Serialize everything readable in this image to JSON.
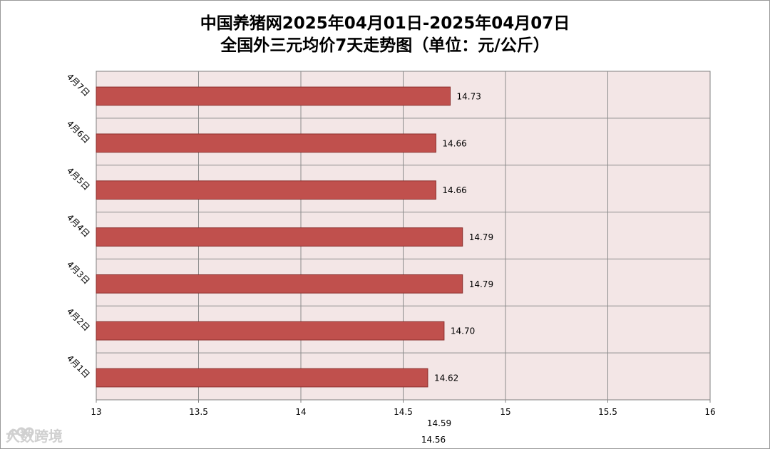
{
  "title_line1": "中国养猪网2025年04月01日-2025年04月07日",
  "title_line2": "全国外三元均价7天走势图（单位：元/公斤）",
  "watermark_text": "大数跨境",
  "chart_data": {
    "type": "bar",
    "orientation": "horizontal",
    "title": "中国养猪网2025年04月01日-2025年04月07日 全国外三元均价7天走势图（单位：元/公斤）",
    "categories": [
      "4月1日",
      "4月2日",
      "4月3日",
      "4月4日",
      "4月5日",
      "4月6日",
      "4月7日"
    ],
    "values": [
      14.62,
      14.7,
      14.79,
      14.79,
      14.66,
      14.66,
      14.73
    ],
    "value_labels": [
      "14.62",
      "14.70",
      "14.79",
      "14.79",
      "14.66",
      "14.66",
      "14.73"
    ],
    "xlim": [
      13,
      16
    ],
    "x_ticks": [
      13,
      13.5,
      14,
      14.5,
      15,
      15.5,
      16
    ],
    "x_tick_labels": [
      "13",
      "13.5",
      "14",
      "14.5",
      "15",
      "15.5",
      "16"
    ],
    "extra_labels": [
      "14.59",
      "14.56"
    ],
    "grid": true,
    "bar_color": "#c0504d",
    "plot_background": "#f3e6e6"
  }
}
